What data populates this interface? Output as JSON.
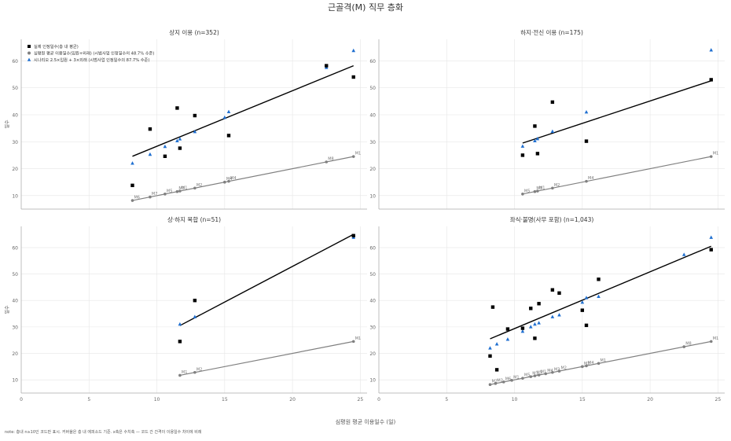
{
  "figure": {
    "title": "근골격(M) 직무 층화",
    "xlabel": "심평원 평균 이용일수 (일)",
    "ylabel": "일수",
    "note": "note: 층내 n≥10인 코드만 표시. 커버율은 층 내 에피소드 기준. x축은 수치축 — 코드 간 간격이 이용일수 차이에 비례"
  },
  "legend": {
    "placement": "top-left of first panel",
    "entries": [
      {
        "label": "실제 인정일수(층 내 평균)",
        "color": "#000000",
        "marker": "square"
      },
      {
        "label": "심평원 평균 이용일수(입원+외래) (시범사업 인정일수의 48.7% 수준)",
        "color": "#808080",
        "marker": "circle"
      },
      {
        "label": "시나리오 2.5×입원 + 3×외래 (시범사업 인정일수의 87.7% 수준)",
        "color": "#1f6fd0",
        "marker": "triangle"
      }
    ]
  },
  "colors": {
    "actual": "#000000",
    "hira": "#808080",
    "scenario": "#1f6fd0",
    "grid": "#e6e6e6",
    "axis": "#aaaaaa"
  },
  "chart_data": [
    {
      "type": "scatter",
      "title": "상지 이용 (n=352)",
      "xlim": [
        0,
        25.5
      ],
      "ylim": [
        5,
        68
      ],
      "xticks": [
        0,
        5,
        10,
        15,
        20,
        25
      ],
      "yticks": [
        10,
        20,
        30,
        40,
        50,
        60
      ],
      "grid": true,
      "actual": [
        [
          8.2,
          13.8
        ],
        [
          9.5,
          34.7
        ],
        [
          10.6,
          24.6
        ],
        [
          11.5,
          42.5
        ],
        [
          11.7,
          27.6
        ],
        [
          12.8,
          39.7
        ],
        [
          15.3,
          32.3
        ],
        [
          22.5,
          58.2
        ],
        [
          24.5,
          54.0
        ]
      ],
      "scenario": [
        [
          8.2,
          22.0
        ],
        [
          9.5,
          25.3
        ],
        [
          10.6,
          28.2
        ],
        [
          11.5,
          30.3
        ],
        [
          11.7,
          31.0
        ],
        [
          12.8,
          33.7
        ],
        [
          15.0,
          39.0
        ],
        [
          15.3,
          41.1
        ],
        [
          22.5,
          57.5
        ],
        [
          24.5,
          63.8
        ]
      ],
      "actual_fit": [
        [
          8.2,
          24.6
        ],
        [
          24.5,
          58.2
        ]
      ],
      "hira_line": [
        [
          8.2,
          8.2
        ],
        [
          24.5,
          24.5
        ]
      ],
      "hira_points": [
        {
          "x": 8.2,
          "y": 8.2,
          "label": "M6"
        },
        {
          "x": 9.5,
          "y": 9.5,
          "label": "M7"
        },
        {
          "x": 10.6,
          "y": 10.6,
          "label": "M5"
        },
        {
          "x": 11.5,
          "y": 11.5,
          "label": "M3"
        },
        {
          "x": 11.7,
          "y": 11.7,
          "label": "M1"
        },
        {
          "x": 12.8,
          "y": 12.8,
          "label": "M2"
        },
        {
          "x": 15.0,
          "y": 15.0,
          "label": "M4"
        },
        {
          "x": 15.3,
          "y": 15.3,
          "label": "M4"
        },
        {
          "x": 22.5,
          "y": 22.5,
          "label": "M8"
        },
        {
          "x": 24.5,
          "y": 24.5,
          "label": "M1"
        }
      ]
    },
    {
      "type": "scatter",
      "title": "하지·전신 이용 (n=175)",
      "xlim": [
        0,
        25.5
      ],
      "ylim": [
        5,
        68
      ],
      "xticks": [
        0,
        5,
        10,
        15,
        20,
        25
      ],
      "yticks": [
        10,
        20,
        30,
        40,
        50,
        60
      ],
      "grid": true,
      "actual": [
        [
          10.6,
          25.0
        ],
        [
          11.5,
          35.8
        ],
        [
          11.7,
          25.6
        ],
        [
          12.8,
          44.7
        ],
        [
          15.3,
          30.2
        ],
        [
          24.5,
          53.0
        ]
      ],
      "scenario": [
        [
          10.6,
          28.3
        ],
        [
          11.5,
          30.3
        ],
        [
          11.7,
          31.1
        ],
        [
          12.8,
          33.8
        ],
        [
          15.3,
          41.0
        ],
        [
          24.5,
          64.0
        ]
      ],
      "actual_fit": [
        [
          10.6,
          29.5
        ],
        [
          24.5,
          52.6
        ]
      ],
      "hira_line": [
        [
          10.6,
          10.6
        ],
        [
          24.5,
          24.5
        ]
      ],
      "hira_points": [
        {
          "x": 10.6,
          "y": 10.6,
          "label": "M5"
        },
        {
          "x": 11.5,
          "y": 11.5,
          "label": "M3"
        },
        {
          "x": 11.7,
          "y": 11.7,
          "label": "M1"
        },
        {
          "x": 12.8,
          "y": 12.8,
          "label": "M2"
        },
        {
          "x": 15.3,
          "y": 15.3,
          "label": "M4"
        },
        {
          "x": 24.5,
          "y": 24.5,
          "label": "M1"
        }
      ]
    },
    {
      "type": "scatter",
      "title": "상·하지 복합 (n=51)",
      "xlim": [
        0,
        25.5
      ],
      "ylim": [
        5,
        68
      ],
      "xticks": [
        0,
        5,
        10,
        15,
        20,
        25
      ],
      "yticks": [
        10,
        20,
        30,
        40,
        50,
        60
      ],
      "grid": true,
      "actual": [
        [
          11.7,
          24.5
        ],
        [
          12.8,
          40.0
        ],
        [
          24.5,
          64.5
        ]
      ],
      "scenario": [
        [
          11.7,
          31.0
        ],
        [
          12.8,
          33.8
        ],
        [
          24.5,
          63.8
        ]
      ],
      "actual_fit": [
        [
          11.7,
          30.5
        ],
        [
          24.5,
          65.0
        ]
      ],
      "hira_line": [
        [
          11.7,
          11.7
        ],
        [
          24.5,
          24.5
        ]
      ],
      "hira_points": [
        {
          "x": 11.7,
          "y": 11.7,
          "label": "M1"
        },
        {
          "x": 12.8,
          "y": 12.8,
          "label": "M2"
        },
        {
          "x": 24.5,
          "y": 24.5,
          "label": "M1"
        }
      ]
    },
    {
      "type": "scatter",
      "title": "좌식·불명(사무 포함) (n=1,043)",
      "xlim": [
        0,
        25.5
      ],
      "ylim": [
        5,
        68
      ],
      "xticks": [
        0,
        5,
        10,
        15,
        20,
        25
      ],
      "yticks": [
        10,
        20,
        30,
        40,
        50,
        60
      ],
      "grid": true,
      "actual": [
        [
          8.2,
          19.0
        ],
        [
          8.4,
          37.5
        ],
        [
          8.7,
          13.8
        ],
        [
          9.5,
          29.2
        ],
        [
          10.6,
          29.5
        ],
        [
          11.2,
          37.0
        ],
        [
          11.5,
          25.7
        ],
        [
          11.8,
          38.8
        ],
        [
          12.8,
          44.0
        ],
        [
          13.3,
          42.8
        ],
        [
          15.0,
          36.3
        ],
        [
          15.3,
          30.6
        ],
        [
          16.2,
          48.0
        ],
        [
          24.5,
          59.2
        ]
      ],
      "scenario": [
        [
          8.2,
          22.0
        ],
        [
          8.7,
          23.5
        ],
        [
          9.5,
          25.3
        ],
        [
          10.6,
          28.3
        ],
        [
          11.2,
          30.0
        ],
        [
          11.5,
          31.0
        ],
        [
          11.8,
          31.5
        ],
        [
          12.8,
          33.8
        ],
        [
          13.3,
          34.5
        ],
        [
          15.0,
          39.3
        ],
        [
          15.3,
          41.0
        ],
        [
          16.2,
          41.5
        ],
        [
          22.5,
          57.3
        ],
        [
          24.5,
          63.8
        ]
      ],
      "actual_fit": [
        [
          8.2,
          25.5
        ],
        [
          24.5,
          60.5
        ]
      ],
      "hira_line": [
        [
          8.2,
          8.2
        ],
        [
          24.5,
          24.5
        ]
      ],
      "hira_points": [
        {
          "x": 8.2,
          "y": 8.2,
          "label": "M2"
        },
        {
          "x": 8.6,
          "y": 8.6,
          "label": "M2"
        },
        {
          "x": 9.2,
          "y": 9.2,
          "label": "M6"
        },
        {
          "x": 9.8,
          "y": 9.8,
          "label": "M1"
        },
        {
          "x": 10.6,
          "y": 10.6,
          "label": "M5"
        },
        {
          "x": 11.2,
          "y": 11.2,
          "label": "M1"
        },
        {
          "x": 11.5,
          "y": 11.5,
          "label": "M5"
        },
        {
          "x": 11.8,
          "y": 11.8,
          "label": "M1"
        },
        {
          "x": 12.3,
          "y": 12.3,
          "label": "M4"
        },
        {
          "x": 12.8,
          "y": 12.8,
          "label": "M3"
        },
        {
          "x": 13.3,
          "y": 13.3,
          "label": "M2"
        },
        {
          "x": 15.0,
          "y": 15.0,
          "label": "M3"
        },
        {
          "x": 15.3,
          "y": 15.3,
          "label": "M4"
        },
        {
          "x": 16.2,
          "y": 16.2,
          "label": "M1"
        },
        {
          "x": 22.5,
          "y": 22.5,
          "label": "M8"
        },
        {
          "x": 24.5,
          "y": 24.5,
          "label": "M1"
        }
      ]
    }
  ]
}
